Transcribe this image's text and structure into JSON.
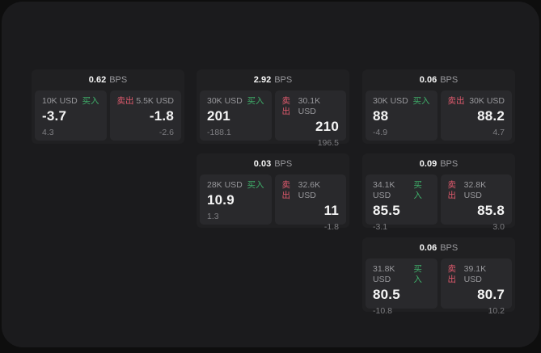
{
  "labels": {
    "bps_unit": "BPS",
    "buy": "买入",
    "sell": "卖出"
  },
  "colors": {
    "backdrop": "#0e0e0e",
    "window": "#1b1b1d",
    "card": "#202022",
    "panel": "#29292c",
    "text_primary": "#f5f5f5",
    "text_secondary": "#98989c",
    "text_dim": "#7e7e82",
    "buy": "#3fae6a",
    "sell": "#e05a6d"
  },
  "cards": [
    {
      "bps": "0.62",
      "row": 1,
      "col": 1,
      "buy": {
        "amount": "10K USD",
        "price": "-3.7",
        "delta": "4.3"
      },
      "sell": {
        "amount": "5.5K USD",
        "price": "-1.8",
        "delta": "-2.6"
      }
    },
    {
      "bps": "2.92",
      "row": 1,
      "col": 2,
      "buy": {
        "amount": "30K USD",
        "price": "201",
        "delta": "-188.1"
      },
      "sell": {
        "amount": "30.1K USD",
        "price": "210",
        "delta": "196.5"
      }
    },
    {
      "bps": "0.06",
      "row": 1,
      "col": 3,
      "buy": {
        "amount": "30K USD",
        "price": "88",
        "delta": "-4.9"
      },
      "sell": {
        "amount": "30K USD",
        "price": "88.2",
        "delta": "4.7"
      }
    },
    {
      "bps": "0.03",
      "row": 2,
      "col": 2,
      "buy": {
        "amount": "28K USD",
        "price": "10.9",
        "delta": "1.3"
      },
      "sell": {
        "amount": "32.6K USD",
        "price": "11",
        "delta": "-1.8"
      }
    },
    {
      "bps": "0.09",
      "row": 2,
      "col": 3,
      "buy": {
        "amount": "34.1K USD",
        "price": "85.5",
        "delta": "-3.1"
      },
      "sell": {
        "amount": "32.8K USD",
        "price": "85.8",
        "delta": "3.0"
      }
    },
    {
      "bps": "0.06",
      "row": 3,
      "col": 3,
      "buy": {
        "amount": "31.8K USD",
        "price": "80.5",
        "delta": "-10.8"
      },
      "sell": {
        "amount": "39.1K USD",
        "price": "80.7",
        "delta": "10.2"
      }
    }
  ]
}
